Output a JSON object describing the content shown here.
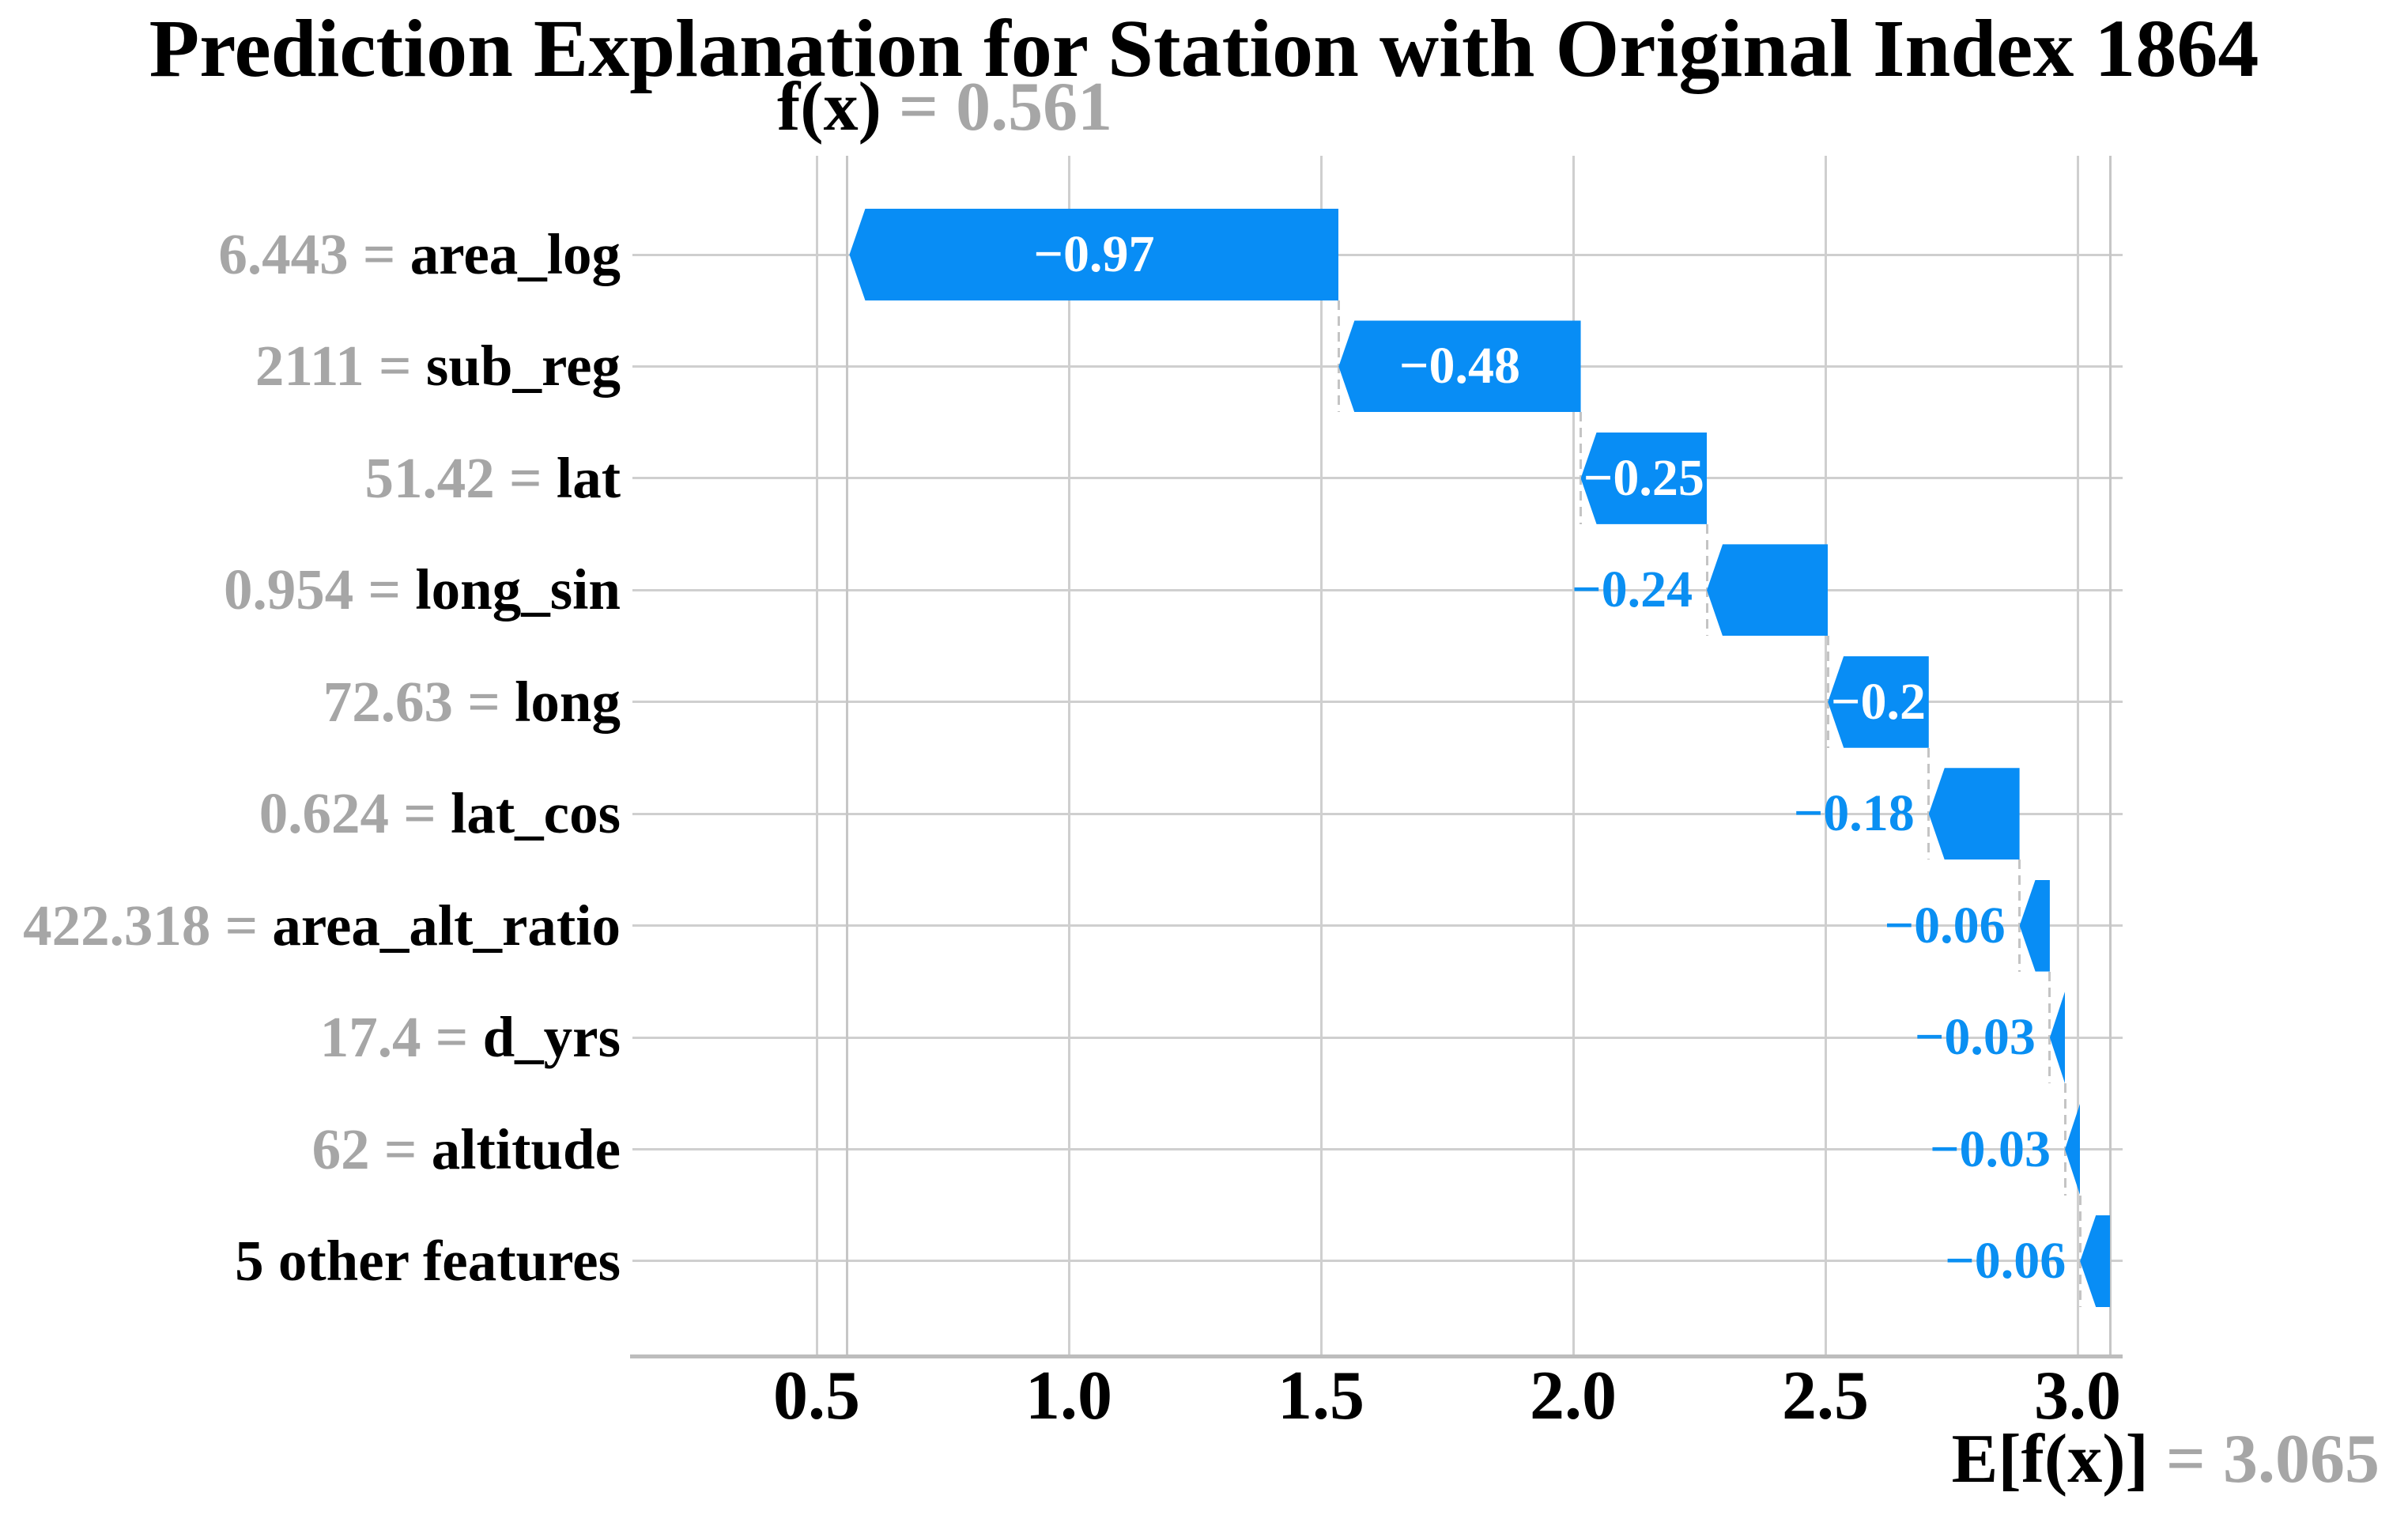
{
  "title": "Prediction Explanation for Station with Original Index 1864",
  "annotations": {
    "fx": {
      "name": "f(x)",
      "rest": " = 0.561"
    },
    "efx": {
      "name": "E[f(x)]",
      "rest": " = 3.065"
    }
  },
  "colors": {
    "bar_blue": "#088df5",
    "inside_label": "#ffffff",
    "outside_label": "#0a8ff2",
    "muted_gray": "#a6a6a6",
    "text_black": "#000000",
    "gridline": "#cfcfcf",
    "reference_line": "#c6c6c6",
    "axis_line": "#bdbdbd",
    "connector": "#c4c4c4",
    "background": "#ffffff"
  },
  "chart_data": {
    "type": "bar",
    "subtype": "shap-waterfall",
    "title": "Prediction Explanation for Station with Original Index 1864",
    "base_value": 3.065,
    "prediction": 0.561,
    "base_label": "E[f(x)] = 3.065",
    "prediction_label": "f(x) = 0.561",
    "xlim": [
      0.135,
      3.089
    ],
    "x_ticks": [
      0.5,
      1.0,
      1.5,
      2.0,
      2.5,
      3.0
    ],
    "x_tick_labels": [
      "0.5",
      "1.0",
      "1.5",
      "2.0",
      "2.5",
      "3.0"
    ],
    "grid": true,
    "equals": " = ",
    "rows": [
      {
        "feature": "area_log",
        "feature_value": "6.443",
        "shap": -0.97,
        "label": "−0.97",
        "label_inside": true
      },
      {
        "feature": "sub_reg",
        "feature_value": "2111",
        "shap": -0.48,
        "label": "−0.48",
        "label_inside": true
      },
      {
        "feature": "lat",
        "feature_value": "51.42",
        "shap": -0.25,
        "label": "−0.25",
        "label_inside": true
      },
      {
        "feature": "long_sin",
        "feature_value": "0.954",
        "shap": -0.24,
        "label": "−0.24",
        "label_inside": false
      },
      {
        "feature": "long",
        "feature_value": "72.63",
        "shap": -0.2,
        "label": "−0.2",
        "label_inside": true
      },
      {
        "feature": "lat_cos",
        "feature_value": "0.624",
        "shap": -0.18,
        "label": "−0.18",
        "label_inside": false
      },
      {
        "feature": "area_alt_ratio",
        "feature_value": "422.318",
        "shap": -0.06,
        "label": "−0.06",
        "label_inside": false
      },
      {
        "feature": "d_yrs",
        "feature_value": "17.4",
        "shap": -0.03,
        "label": "−0.03",
        "label_inside": false
      },
      {
        "feature": "altitude",
        "feature_value": "62",
        "shap": -0.03,
        "label": "−0.03",
        "label_inside": false
      },
      {
        "feature": "5 other features",
        "feature_value": null,
        "shap": -0.06,
        "label": "−0.06",
        "label_inside": false
      }
    ]
  }
}
